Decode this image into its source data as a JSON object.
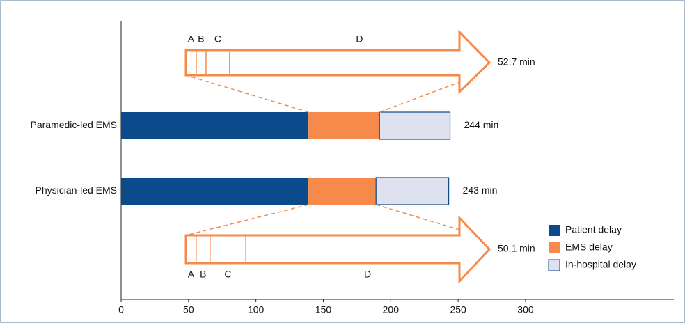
{
  "chart_data": {
    "type": "stacked-bar-horizontal",
    "categories": [
      "Paramedic-led EMS",
      "Physician-led EMS"
    ],
    "series": [
      {
        "name": "Patient delay",
        "color": "#0b4a8b",
        "values": [
          139,
          139
        ]
      },
      {
        "name": "EMS delay",
        "color": "#f58a4b",
        "values": [
          52.7,
          50.1
        ],
        "value_labels": [
          "52.7 min",
          "50.1 min"
        ]
      },
      {
        "name": "In-hospital delay",
        "color": "#dfe1ef",
        "values": [
          52.3,
          53.9
        ]
      }
    ],
    "totals": [
      244,
      243
    ],
    "total_labels": [
      "244 min",
      "243 min"
    ],
    "breakdowns": [
      {
        "labels": [
          "A",
          "B",
          "C",
          "D"
        ],
        "values": [
          1.8,
          1.7,
          4.1,
          45.1
        ]
      },
      {
        "labels": [
          "A",
          "B",
          "C",
          "D"
        ],
        "values": [
          1.7,
          2.3,
          5.9,
          40.2
        ]
      }
    ],
    "xlim": [
      0,
      410
    ],
    "xticks": [
      0,
      50,
      100,
      150,
      200,
      250,
      300
    ],
    "legend": "lower right"
  }
}
